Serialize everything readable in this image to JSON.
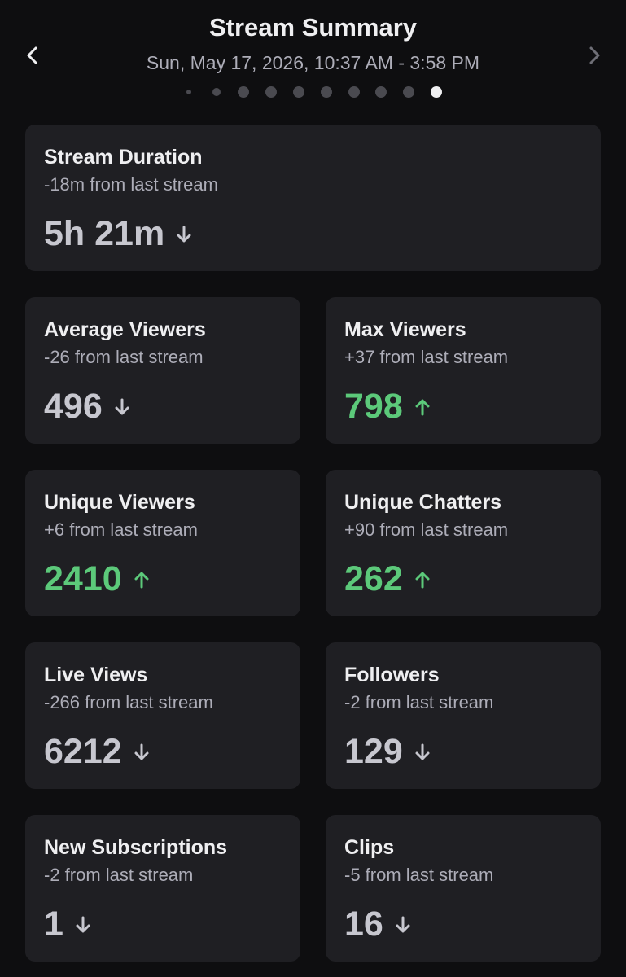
{
  "header": {
    "title": "Stream Summary",
    "subtitle": "Sun, May 17, 2026, 10:37 AM - 3:58 PM"
  },
  "cards": [
    {
      "title": "Stream Duration",
      "change": "-18m from last stream",
      "value": "5h 21m",
      "trend": "down"
    },
    {
      "title": "Average Viewers",
      "change": "-26 from last stream",
      "value": "496",
      "trend": "down"
    },
    {
      "title": "Max Viewers",
      "change": "+37 from last stream",
      "value": "798",
      "trend": "up"
    },
    {
      "title": "Unique Viewers",
      "change": "+6 from last stream",
      "value": "2410",
      "trend": "up"
    },
    {
      "title": "Unique Chatters",
      "change": "+90 from last stream",
      "value": "262",
      "trend": "up"
    },
    {
      "title": "Live Views",
      "change": "-266 from last stream",
      "value": "6212",
      "trend": "down"
    },
    {
      "title": "Followers",
      "change": "-2 from last stream",
      "value": "129",
      "trend": "down"
    },
    {
      "title": "New Subscriptions",
      "change": "-2 from last stream",
      "value": "1",
      "trend": "down"
    },
    {
      "title": "Clips",
      "change": "-5 from last stream",
      "value": "16",
      "trend": "down"
    }
  ]
}
